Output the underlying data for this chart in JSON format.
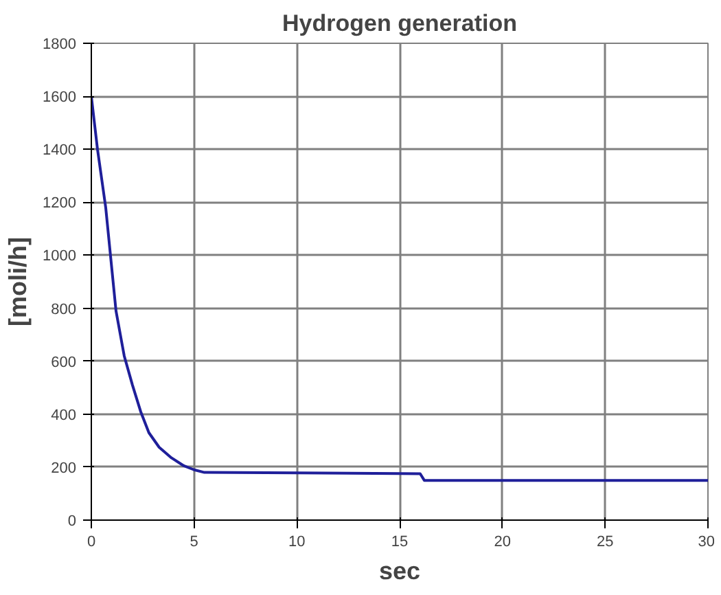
{
  "chart_data": {
    "type": "line",
    "title": "Hydrogen generation",
    "xlabel": "sec",
    "ylabel": "[moli/h]",
    "x": [
      0,
      0.3,
      0.7,
      1.2,
      1.6,
      2.0,
      2.4,
      2.8,
      3.3,
      3.9,
      4.5,
      5.0,
      5.5,
      10,
      15,
      16,
      16.2,
      20,
      25,
      30
    ],
    "series": [
      {
        "color": "#1f1f9a",
        "values": [
          1600,
          1400,
          1180,
          790,
          620,
          510,
          410,
          330,
          275,
          235,
          205,
          190,
          180,
          178,
          176,
          175,
          150,
          150,
          150,
          150
        ]
      }
    ],
    "xlim": [
      0,
      30
    ],
    "ylim": [
      0,
      1800
    ],
    "xticks": [
      0,
      5,
      10,
      15,
      20,
      25,
      30
    ],
    "yticks": [
      0,
      200,
      400,
      600,
      800,
      1000,
      1200,
      1400,
      1600,
      1800
    ],
    "grid": true,
    "marker": "none",
    "line_style": "solid"
  }
}
